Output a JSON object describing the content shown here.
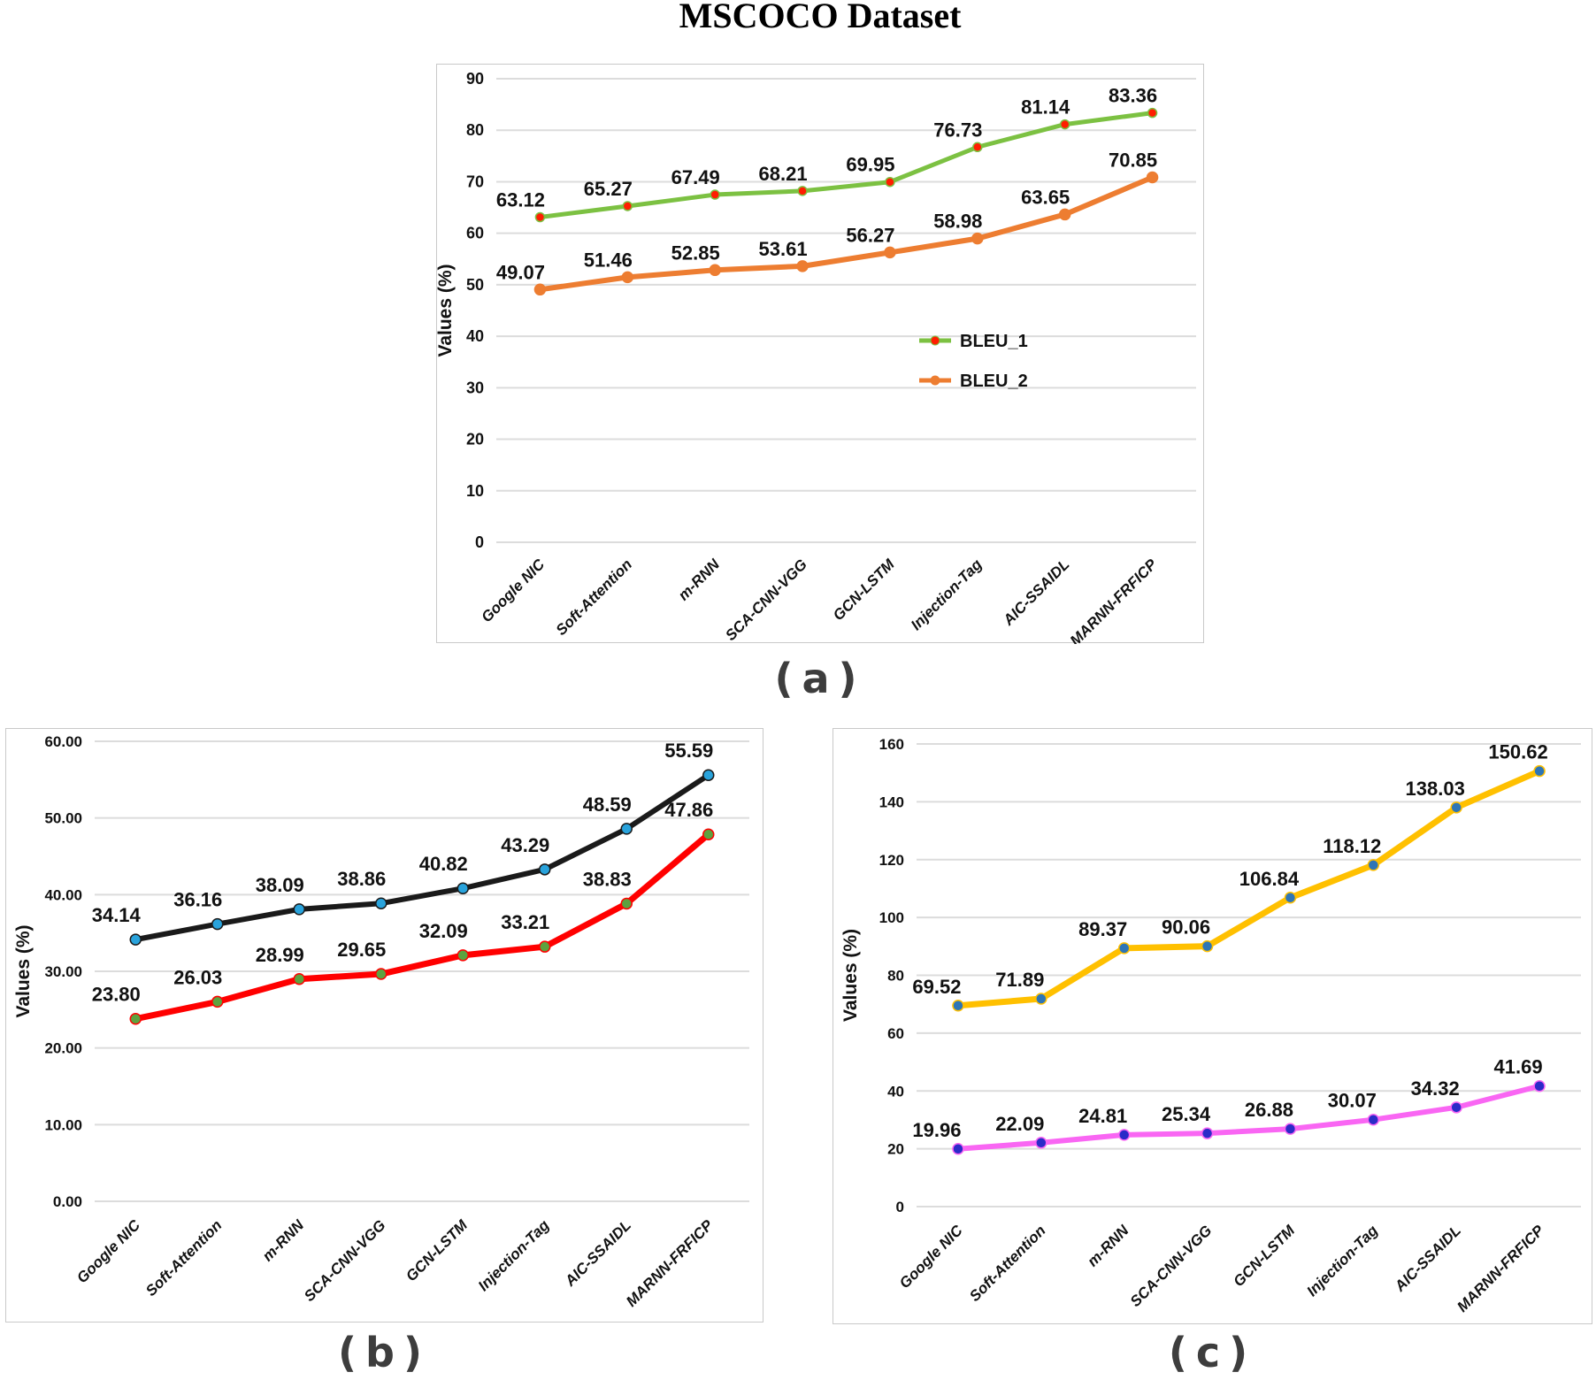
{
  "page_title": "MSCOCO Dataset",
  "captions": {
    "a": "(a)",
    "b": "(b)",
    "c": "(c)"
  },
  "colors": {
    "grid": "#DCDCDC",
    "panel_border": "#C9C9C9",
    "text": "#111111",
    "caption_text": "#3D3D3D"
  },
  "chart_data": [
    {
      "id": "a",
      "type": "line",
      "title": "MSCOCO Dataset",
      "xlabel": "",
      "ylabel": "Values (%)",
      "ylim": [
        0,
        90
      ],
      "ytick_step": 10,
      "ytick_format": "int",
      "grid": true,
      "legend_position": "center-right",
      "categories": [
        "Google NIC",
        "Soft-Attention",
        "m-RNN",
        "SCA-CNN-VGG",
        "GCN-LSTM",
        "Injection-Tag",
        "AIC-SSAIDL",
        "MARNN-FRFICP"
      ],
      "series": [
        {
          "name": "BLEU_1",
          "values": [
            63.12,
            65.27,
            67.49,
            68.21,
            69.95,
            76.73,
            81.14,
            83.36
          ],
          "line_color": "#7CC142",
          "marker_color": "#FF1E00",
          "marker_stroke": "#7CC142",
          "line_width": 5,
          "marker_radius": 5
        },
        {
          "name": "BLEU_2",
          "values": [
            49.07,
            51.46,
            52.85,
            53.61,
            56.27,
            58.98,
            63.65,
            70.85
          ],
          "line_color": "#ED7D31",
          "marker_color": "#ED7D31",
          "marker_stroke": "#ED7D31",
          "line_width": 6,
          "marker_radius": 6
        }
      ]
    },
    {
      "id": "b",
      "type": "line",
      "title": "",
      "xlabel": "",
      "ylabel": "Values (%)",
      "ylim": [
        0,
        60
      ],
      "ytick_step": 10,
      "ytick_format": "2dp",
      "grid": true,
      "legend_position": "none",
      "categories": [
        "Google NIC",
        "Soft-Attention",
        "m-RNN",
        "SCA-CNN-VGG",
        "GCN-LSTM",
        "Injection-Tag",
        "AIC-SSAIDL",
        "MARNN-FRFICP"
      ],
      "series": [
        {
          "name": "",
          "values": [
            34.14,
            36.16,
            38.09,
            38.86,
            40.82,
            43.29,
            48.59,
            55.59
          ],
          "line_color": "#1A1A1A",
          "marker_color": "#29A3DC",
          "marker_stroke": "#1A1A1A",
          "line_width": 6,
          "marker_radius": 6
        },
        {
          "name": "",
          "values": [
            23.8,
            26.03,
            28.99,
            29.65,
            32.09,
            33.21,
            38.83,
            47.86
          ],
          "line_color": "#FF0000",
          "marker_color": "#5DA23F",
          "marker_stroke": "#FF0000",
          "line_width": 7,
          "marker_radius": 6
        }
      ]
    },
    {
      "id": "c",
      "type": "line",
      "title": "",
      "xlabel": "",
      "ylabel": "Values (%)",
      "ylim": [
        0,
        160
      ],
      "ytick_step": 20,
      "ytick_format": "int",
      "grid": true,
      "legend_position": "none",
      "categories": [
        "Google NIC",
        "Soft-Attention",
        "m-RNN",
        "SCA-CNN-VGG",
        "GCN-LSTM",
        "Injection-Tag",
        "AIC-SSAIDL",
        "MARNN-FRFICP"
      ],
      "series": [
        {
          "name": "",
          "values": [
            69.52,
            71.89,
            89.37,
            90.06,
            106.84,
            118.12,
            138.03,
            150.62
          ],
          "line_color": "#FFC000",
          "marker_color": "#2E75B6",
          "marker_stroke": "#FFC000",
          "line_width": 7,
          "marker_radius": 6
        },
        {
          "name": "",
          "values": [
            19.96,
            22.09,
            24.81,
            25.34,
            26.88,
            30.07,
            34.32,
            41.69
          ],
          "line_color": "#F966F3",
          "marker_color": "#2B2BC8",
          "marker_stroke": "#F966F3",
          "line_width": 6,
          "marker_radius": 6
        }
      ]
    }
  ]
}
